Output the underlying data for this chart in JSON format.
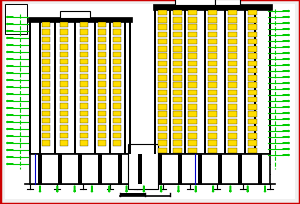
{
  "bg_color": "#f0f0f0",
  "border_color": "#cc0000",
  "wall_color": "#000000",
  "green_color": "#00cc00",
  "yellow_color": "#ffdd00",
  "blue_color": "#0000cc",
  "figsize": [
    3.0,
    2.05
  ],
  "dpi": 100
}
